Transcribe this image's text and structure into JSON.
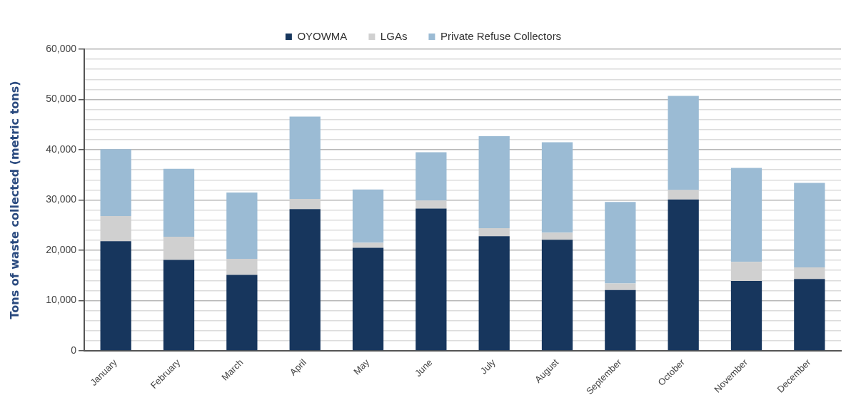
{
  "chart_data": {
    "type": "bar",
    "stacked": true,
    "ylabel": "Tons of waste collected (metric tons)",
    "categories": [
      "January",
      "February",
      "March",
      "April",
      "May",
      "June",
      "July",
      "August",
      "September",
      "October",
      "November",
      "December"
    ],
    "series": [
      {
        "name": "OYOWMA",
        "color": "#17365d",
        "values": [
          21800,
          18100,
          15100,
          28200,
          20500,
          28300,
          22800,
          22100,
          12100,
          30100,
          13900,
          14300
        ]
      },
      {
        "name": "LGAs",
        "color": "#d0d0d0",
        "values": [
          5000,
          4600,
          3200,
          2000,
          1000,
          1600,
          1600,
          1400,
          1300,
          1900,
          3800,
          2300
        ]
      },
      {
        "name": "Private Refuse Collectors",
        "color": "#9bbbd4",
        "values": [
          13300,
          13500,
          13200,
          16400,
          10600,
          9600,
          18300,
          18000,
          16200,
          18700,
          18700,
          16800
        ]
      }
    ],
    "ylim": [
      0,
      60000
    ],
    "yticks": [
      0,
      {
        "value": 2000,
        "label": null
      },
      {
        "value": 4000,
        "label": null
      },
      {
        "value": 6000,
        "label": null
      },
      {
        "value": 8000,
        "label": null
      },
      {
        "value": 10000,
        "label": "10,000"
      },
      {
        "value": 12000,
        "label": null
      },
      {
        "value": 14000,
        "label": null
      },
      {
        "value": 16000,
        "label": null
      },
      {
        "value": 18000,
        "label": null
      },
      {
        "value": 20000,
        "label": "20,000"
      },
      {
        "value": 22000,
        "label": null
      },
      {
        "value": 24000,
        "label": null
      },
      {
        "value": 26000,
        "label": null
      },
      {
        "value": 28000,
        "label": null
      },
      {
        "value": 30000,
        "label": "30,000"
      },
      {
        "value": 32000,
        "label": null
      },
      {
        "value": 34000,
        "label": null
      },
      {
        "value": 36000,
        "label": null
      },
      {
        "value": 38000,
        "label": null
      },
      {
        "value": 40000,
        "label": "40,000"
      },
      {
        "value": 42000,
        "label": null
      },
      {
        "value": 44000,
        "label": null
      },
      {
        "value": 46000,
        "label": null
      },
      {
        "value": 48000,
        "label": null
      },
      {
        "value": 50000,
        "label": "50,000"
      },
      {
        "value": 52000,
        "label": null
      },
      {
        "value": 54000,
        "label": null
      },
      {
        "value": 56000,
        "label": null
      },
      {
        "value": 58000,
        "label": null
      },
      {
        "value": 60000,
        "label": "60,000"
      }
    ],
    "grid": "y",
    "legend": "top"
  }
}
